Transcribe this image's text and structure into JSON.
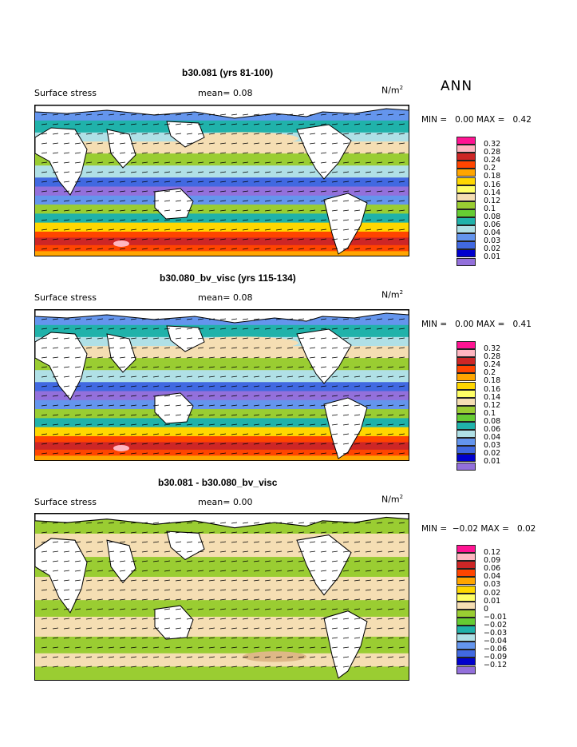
{
  "header": {
    "season": "ANN"
  },
  "panels": [
    {
      "title": "b30.081 (yrs 81-100)",
      "field": "Surface stress",
      "mean_label": "mean=",
      "mean_value": "0.08",
      "units": "N/m",
      "units_exp": "2",
      "min_label": "MIN =",
      "min_value": "0.00",
      "max_label": "MAX =",
      "max_value": "0.42",
      "legend": [
        "0.32",
        "0.28",
        "0.24",
        "0.2",
        "0.18",
        "0.16",
        "0.14",
        "0.12",
        "0.1",
        "0.08",
        "0.06",
        "0.04",
        "0.03",
        "0.02",
        "0.01"
      ],
      "kind": "abs"
    },
    {
      "title": "b30.080_bv_visc (yrs 115-134)",
      "field": "Surface stress",
      "mean_label": "mean=",
      "mean_value": "0.08",
      "units": "N/m",
      "units_exp": "2",
      "min_label": "MIN =",
      "min_value": "0.00",
      "max_label": "MAX =",
      "max_value": "0.41",
      "legend": [
        "0.32",
        "0.28",
        "0.24",
        "0.2",
        "0.18",
        "0.16",
        "0.14",
        "0.12",
        "0.1",
        "0.08",
        "0.06",
        "0.04",
        "0.03",
        "0.02",
        "0.01"
      ],
      "kind": "abs"
    },
    {
      "title": "b30.081 - b30.080_bv_visc",
      "field": "Surface stress",
      "mean_label": "mean=",
      "mean_value": "0.00",
      "units": "N/m",
      "units_exp": "2",
      "min_label": "MIN =",
      "min_value": "−0.02",
      "max_label": "MAX =",
      "max_value": "0.02",
      "legend": [
        "0.12",
        "0.09",
        "0.06",
        "0.04",
        "0.03",
        "0.02",
        "0.01",
        "0",
        "−0.01",
        "−0.02",
        "−0.03",
        "−0.04",
        "−0.06",
        "−0.09",
        "−0.12"
      ],
      "kind": "diff"
    }
  ],
  "colors": {
    "palette": [
      "#ff1493",
      "#ffb6c1",
      "#cd2626",
      "#ff4500",
      "#ffa500",
      "#ffd700",
      "#ffff66",
      "#f5deb3",
      "#9acd32",
      "#66cc33",
      "#20b2aa",
      "#b0e0e6",
      "#6495ed",
      "#4169e1",
      "#0000cd",
      "#9370db"
    ],
    "land": "#ffffff"
  }
}
